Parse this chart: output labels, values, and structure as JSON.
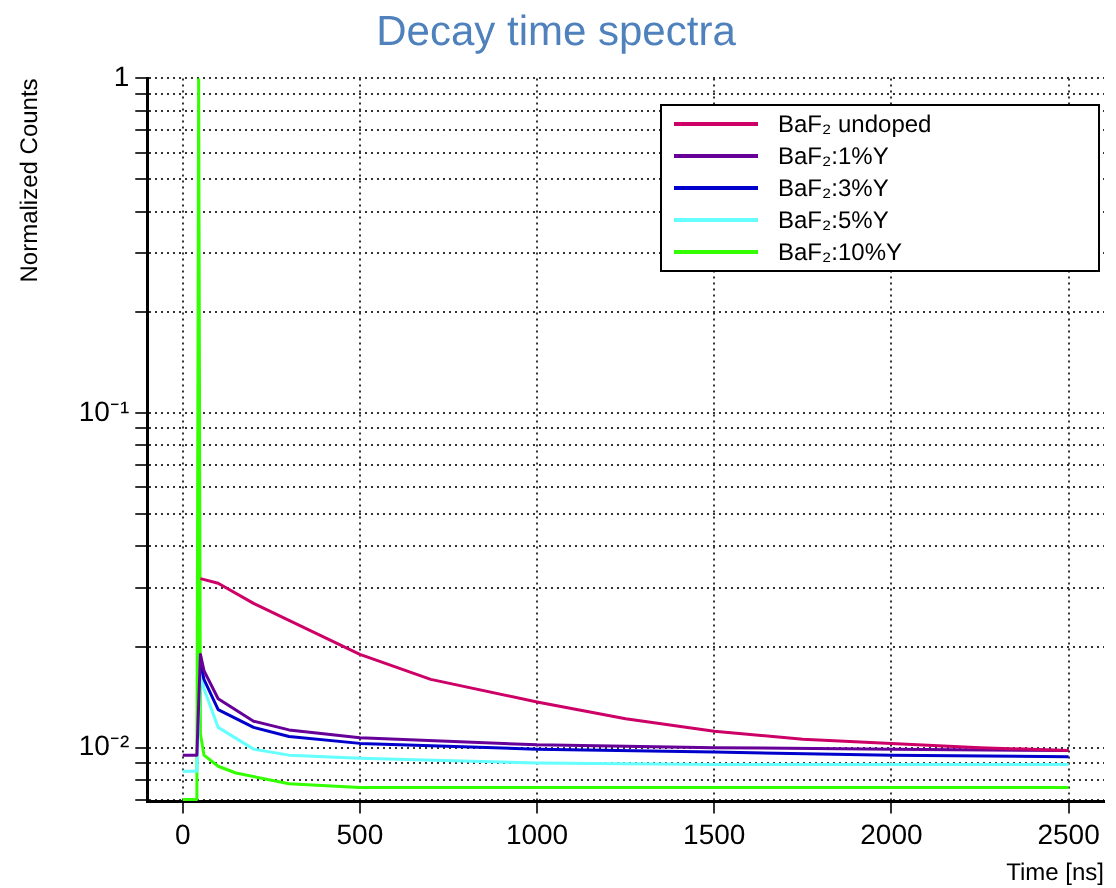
{
  "chart_data": {
    "type": "line",
    "title": "Decay time spectra",
    "xlabel": "Time [ns]",
    "ylabel": "Normalized Counts",
    "log": "y",
    "grid": true,
    "legend": "top right",
    "marker": "none",
    "line_style": "solid",
    "xlim": [
      -100,
      2600
    ],
    "xticks": [
      0,
      500,
      1000,
      1500,
      2000,
      2500
    ],
    "ylim": [
      0.0069,
      1
    ],
    "yticks": [
      {
        "value": 0.007,
        "label": null
      },
      {
        "value": 0.008,
        "label": null
      },
      {
        "value": 0.009,
        "label": null
      },
      {
        "value": 0.01,
        "label": "10⁻²"
      },
      {
        "value": 0.02,
        "label": null
      },
      {
        "value": 0.03,
        "label": null
      },
      {
        "value": 0.04,
        "label": null
      },
      {
        "value": 0.05,
        "label": null
      },
      {
        "value": 0.06,
        "label": null
      },
      {
        "value": 0.07,
        "label": null
      },
      {
        "value": 0.08,
        "label": null
      },
      {
        "value": 0.09,
        "label": null
      },
      {
        "value": 0.1,
        "label": "10⁻¹"
      },
      {
        "value": 0.2,
        "label": null
      },
      {
        "value": 0.3,
        "label": null
      },
      {
        "value": 0.4,
        "label": null
      },
      {
        "value": 0.5,
        "label": null
      },
      {
        "value": 0.6,
        "label": null
      },
      {
        "value": 0.7,
        "label": null
      },
      {
        "value": 0.8,
        "label": null
      },
      {
        "value": 0.9,
        "label": null
      },
      1
    ],
    "series": [
      {
        "name": "BaF₂ undoped",
        "color": "#cc0066",
        "x": [
          50,
          100,
          200,
          300,
          500,
          700,
          1000,
          1250,
          1500,
          1750,
          2000,
          2250,
          2500
        ],
        "values": [
          0.032,
          0.031,
          0.027,
          0.024,
          0.019,
          0.016,
          0.0137,
          0.0122,
          0.0112,
          0.0106,
          0.0103,
          0.01,
          0.0098
        ]
      },
      {
        "name": "BaF₂:1%Y",
        "color": "#660099",
        "x": [
          0,
          40,
          50,
          60,
          100,
          200,
          300,
          500,
          1000,
          1500,
          2000,
          2500
        ],
        "values": [
          0.0095,
          0.0095,
          0.019,
          0.017,
          0.014,
          0.012,
          0.0113,
          0.0107,
          0.0102,
          0.01,
          0.0099,
          0.0098
        ]
      },
      {
        "name": "BaF₂:3%Y",
        "color": "#0000cc",
        "x": [
          50,
          60,
          100,
          200,
          300,
          500,
          1000,
          1500,
          2000,
          2500
        ],
        "values": [
          0.018,
          0.016,
          0.013,
          0.0115,
          0.0108,
          0.0103,
          0.0099,
          0.0097,
          0.0095,
          0.0094
        ]
      },
      {
        "name": "BaF₂:5%Y",
        "color": "#66ffff",
        "x": [
          0,
          40,
          50,
          60,
          100,
          200,
          300,
          500,
          1000,
          1500,
          2000,
          2500
        ],
        "values": [
          0.0085,
          0.0085,
          0.017,
          0.015,
          0.0115,
          0.0099,
          0.0095,
          0.0093,
          0.009,
          0.0089,
          0.0089,
          0.0089
        ]
      },
      {
        "name": "BaF₂:10%Y",
        "color": "#33ff00",
        "x": [
          0,
          40,
          45,
          50,
          60,
          100,
          150,
          300,
          500,
          1000,
          1500,
          2000,
          2500
        ],
        "values": [
          0.007,
          0.007,
          1,
          0.011,
          0.0095,
          0.0088,
          0.0084,
          0.0078,
          0.0076,
          0.0076,
          0.0076,
          0.0076,
          0.0076
        ]
      }
    ]
  }
}
